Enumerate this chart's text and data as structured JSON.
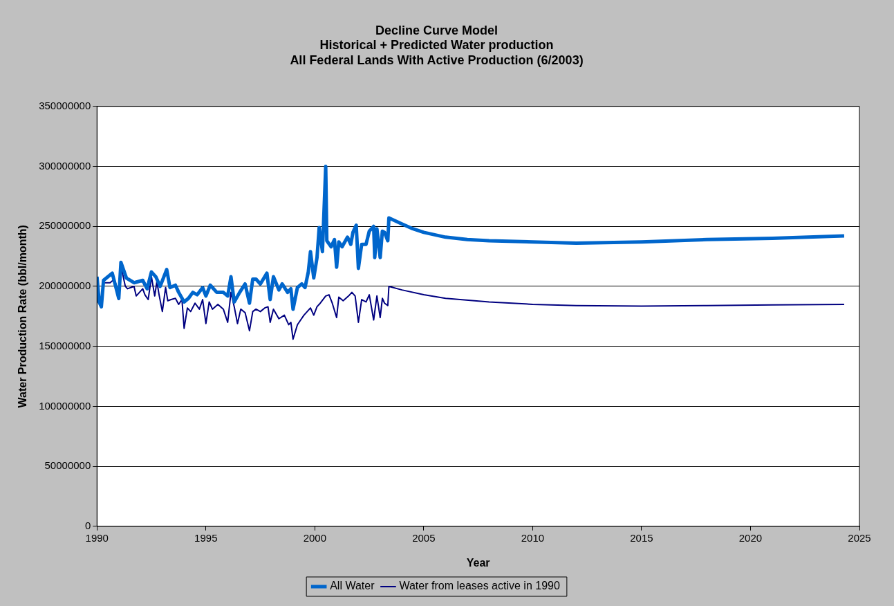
{
  "chart_data": {
    "type": "line",
    "title": "Decline Curve Model\nHistorical + Predicted Water production\nAll Federal Lands With Active Production (6/2003)",
    "xlabel": "Year",
    "ylabel": "Water Production Rate (bbl/month)",
    "xlim": [
      1990,
      2025
    ],
    "xticks": [
      1990,
      1995,
      2000,
      2005,
      2010,
      2015,
      2020,
      2025
    ],
    "ylim": [
      0,
      350000000
    ],
    "yticks": [
      0,
      50000000,
      100000000,
      150000000,
      200000000,
      250000000,
      300000000,
      350000000
    ],
    "grid": "y",
    "legend": "bottom",
    "marker": "none",
    "series": [
      {
        "name": "All Water",
        "color": "#0066cc",
        "x": [
          1990.0,
          1990.1,
          1990.2,
          1990.3,
          1990.7,
          1991.0,
          1991.1,
          1991.35,
          1991.7,
          1992.1,
          1992.3,
          1992.5,
          1992.7,
          1992.9,
          1993.2,
          1993.35,
          1993.6,
          1993.75,
          1994.0,
          1994.2,
          1994.4,
          1994.6,
          1994.85,
          1995.0,
          1995.2,
          1995.5,
          1995.8,
          1996.0,
          1996.15,
          1996.3,
          1996.55,
          1996.8,
          1997.0,
          1997.15,
          1997.3,
          1997.5,
          1997.8,
          1997.95,
          1998.1,
          1998.35,
          1998.5,
          1998.75,
          1998.9,
          1999.0,
          1999.2,
          1999.4,
          1999.55,
          1999.7,
          1999.8,
          1999.95,
          2000.1,
          2000.2,
          2000.35,
          2000.5,
          2000.55,
          2000.75,
          2000.9,
          2001.0,
          2001.1,
          2001.25,
          2001.5,
          2001.65,
          2001.75,
          2001.9,
          2002.0,
          2002.15,
          2002.35,
          2002.5,
          2002.7,
          2002.75,
          2002.85,
          2003.0,
          2003.1,
          2003.2,
          2003.35,
          2003.4,
          2004,
          2004.5,
          2005,
          2006,
          2007,
          2008,
          2010,
          2012,
          2015,
          2018,
          2021,
          2024.3
        ],
        "values": [
          208000000,
          187000000,
          183000000,
          205000000,
          211000000,
          190000000,
          220000000,
          207000000,
          203000000,
          205000000,
          198000000,
          212000000,
          208000000,
          200000000,
          214000000,
          199000000,
          201000000,
          195000000,
          187000000,
          190000000,
          195000000,
          193000000,
          199000000,
          192000000,
          201000000,
          195000000,
          195000000,
          192000000,
          208000000,
          187000000,
          195000000,
          202000000,
          186000000,
          206000000,
          206000000,
          202000000,
          211000000,
          189000000,
          208000000,
          197000000,
          202000000,
          195000000,
          198000000,
          181000000,
          199000000,
          202000000,
          199000000,
          212000000,
          229000000,
          207000000,
          224000000,
          249000000,
          229000000,
          300000000,
          238000000,
          233000000,
          239000000,
          216000000,
          237000000,
          233000000,
          241000000,
          235000000,
          245000000,
          251000000,
          215000000,
          235000000,
          235000000,
          246000000,
          250000000,
          224000000,
          248000000,
          224000000,
          246000000,
          245000000,
          238000000,
          257000000,
          252000000,
          248000000,
          245000000,
          241000000,
          239000000,
          238000000,
          237000000,
          236000000,
          237000000,
          239000000,
          240000000,
          242000000
        ]
      },
      {
        "name": "Water from leases active in 1990",
        "color": "#000080",
        "x": [
          1990.2,
          1990.3,
          1990.6,
          1990.8,
          1990.9,
          1991.0,
          1991.1,
          1991.3,
          1991.4,
          1991.7,
          1991.8,
          1992.1,
          1992.2,
          1992.35,
          1992.5,
          1992.65,
          1992.75,
          1992.85,
          1993.0,
          1993.15,
          1993.25,
          1993.4,
          1993.6,
          1993.75,
          1993.9,
          1994.0,
          1994.15,
          1994.3,
          1994.5,
          1994.7,
          1994.85,
          1995.0,
          1995.15,
          1995.3,
          1995.55,
          1995.8,
          1996.0,
          1996.15,
          1996.3,
          1996.45,
          1996.6,
          1996.8,
          1997.0,
          1997.15,
          1997.3,
          1997.5,
          1997.7,
          1997.85,
          1997.95,
          1998.1,
          1998.35,
          1998.6,
          1998.8,
          1998.9,
          1999.0,
          1999.2,
          1999.35,
          1999.5,
          1999.65,
          1999.8,
          1999.95,
          2000.1,
          2000.25,
          2000.5,
          2000.65,
          2000.8,
          2001.0,
          2001.1,
          2001.3,
          2001.55,
          2001.7,
          2001.85,
          2002.0,
          2002.15,
          2002.35,
          2002.5,
          2002.7,
          2002.85,
          2003.0,
          2003.1,
          2003.2,
          2003.35,
          2003.4,
          2004,
          2005,
          2006,
          2008,
          2010,
          2012,
          2015,
          2018,
          2021,
          2024.3
        ],
        "values": [
          182000000,
          203000000,
          203000000,
          206000000,
          200000000,
          189000000,
          217000000,
          200000000,
          198000000,
          200000000,
          192000000,
          198000000,
          193000000,
          189000000,
          208000000,
          192000000,
          204000000,
          193000000,
          179000000,
          199000000,
          188000000,
          189000000,
          190000000,
          185000000,
          189000000,
          165000000,
          182000000,
          179000000,
          186000000,
          181000000,
          189000000,
          169000000,
          187000000,
          181000000,
          185000000,
          181000000,
          170000000,
          195000000,
          183000000,
          169000000,
          181000000,
          178000000,
          163000000,
          179000000,
          181000000,
          179000000,
          182000000,
          183000000,
          170000000,
          181000000,
          173000000,
          176000000,
          168000000,
          170000000,
          156000000,
          168000000,
          172000000,
          176000000,
          179000000,
          182000000,
          176000000,
          183000000,
          186000000,
          192000000,
          193000000,
          186000000,
          174000000,
          191000000,
          188000000,
          192000000,
          195000000,
          192000000,
          170000000,
          189000000,
          187000000,
          193000000,
          172000000,
          192000000,
          174000000,
          190000000,
          186000000,
          184000000,
          200000000,
          197000000,
          193000000,
          190000000,
          187000000,
          185000000,
          184000000,
          183500000,
          184000000,
          184500000,
          185000000
        ]
      }
    ]
  }
}
